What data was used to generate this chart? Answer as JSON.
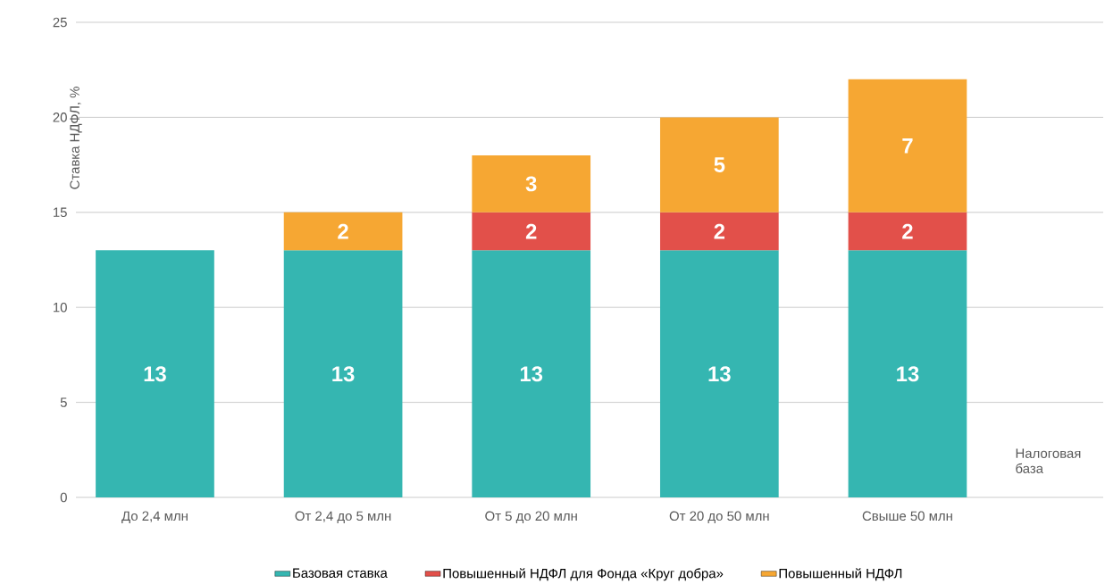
{
  "chart_data": {
    "type": "bar",
    "stacked": true,
    "ylabel": "Ставка НДФЛ, %",
    "xlabel": "Налоговая база",
    "categories": [
      "До 2,4 млн",
      "От 2,4 до 5 млн",
      "От 5 до 20 млн",
      "От 20 до 50 млн",
      "Свыше 50 млн"
    ],
    "series": [
      {
        "name": "Базовая ставка",
        "color": "#35b6b1",
        "values": [
          13,
          13,
          13,
          13,
          13
        ]
      },
      {
        "name": "Повышенный НДФЛ для Фонда «Круг добра»",
        "color": "#e2504a",
        "values": [
          null,
          null,
          2,
          2,
          2
        ]
      },
      {
        "name": "Повышенный НДФЛ",
        "color": "#f6a733",
        "values": [
          null,
          2,
          3,
          5,
          7
        ]
      }
    ],
    "ylim": [
      0,
      25
    ],
    "yticks": [
      0,
      5,
      10,
      15,
      20,
      25
    ],
    "grid": "y",
    "legend": "bottom",
    "data_labels": true
  }
}
